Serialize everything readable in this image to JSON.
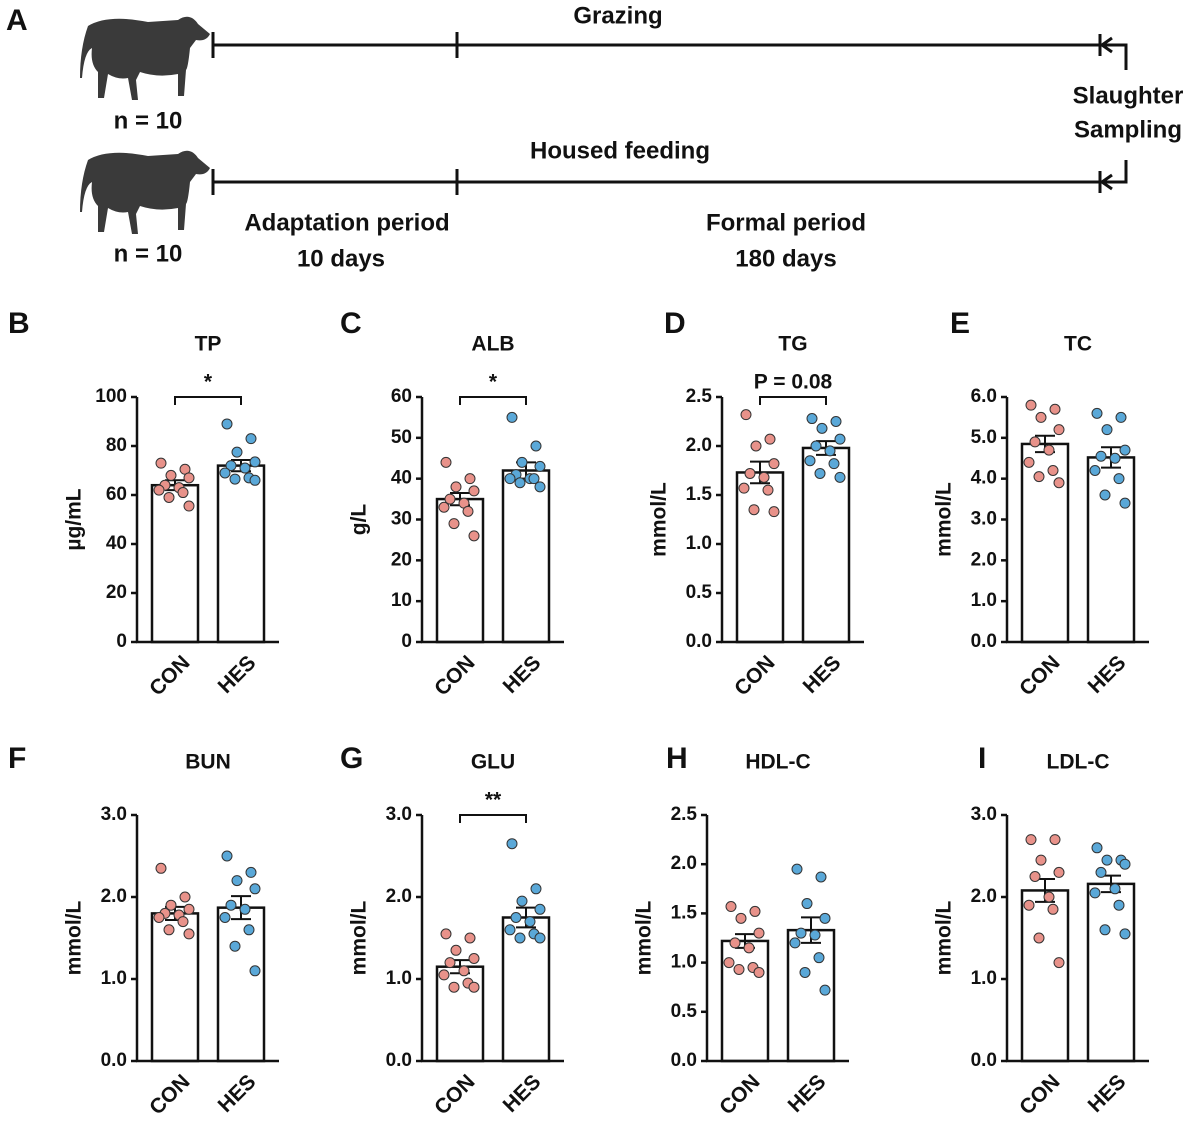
{
  "panel_a": {
    "label": "A",
    "top_group": "Grazing",
    "bottom_group": "Housed feeding",
    "top_n": "n = 10",
    "bottom_n": "n = 10",
    "end_line1": "Slaughter",
    "end_line2": "Sampling",
    "period1_name": "Adaptation period",
    "period1_length": "10 days",
    "period2_name": "Formal period",
    "period2_length": "180 days"
  },
  "chart_data": [
    {
      "type": "bar",
      "panel": "B",
      "title": "TP",
      "y_label": "µg/mL",
      "categories": [
        "CON",
        "HES"
      ],
      "values": [
        64,
        72
      ],
      "errors": [
        2,
        2.3
      ],
      "points": [
        [
          73,
          70.5,
          68,
          67,
          64,
          63,
          62,
          61,
          59,
          55.5
        ],
        [
          89,
          83,
          77.5,
          73.5,
          72,
          71,
          69,
          67,
          66.5,
          66
        ]
      ],
      "point_colors": [
        "#e8928a",
        "#5aa8d8"
      ],
      "color": "#ffffff",
      "annotation": "*",
      "ylim": [
        0,
        100
      ],
      "yticks": [
        0,
        20,
        40,
        60,
        80,
        100
      ]
    },
    {
      "type": "bar",
      "panel": "C",
      "title": "ALB",
      "y_label": "g/L",
      "categories": [
        "CON",
        "HES"
      ],
      "values": [
        35,
        42
      ],
      "errors": [
        1.5,
        2
      ],
      "points": [
        [
          44,
          40,
          38,
          37,
          35,
          34,
          33,
          32,
          29,
          26
        ],
        [
          55,
          48,
          44,
          43,
          41,
          40,
          40,
          40,
          39,
          38
        ]
      ],
      "point_colors": [
        "#e8928a",
        "#5aa8d8"
      ],
      "color": "#ffffff",
      "annotation": "*",
      "ylim": [
        0,
        60
      ],
      "yticks": [
        0,
        10,
        20,
        30,
        40,
        50,
        60
      ]
    },
    {
      "type": "bar",
      "panel": "D",
      "title": "TG",
      "y_label": "mmol/L",
      "categories": [
        "CON",
        "HES"
      ],
      "values": [
        1.73,
        1.98
      ],
      "errors": [
        0.11,
        0.07
      ],
      "points": [
        [
          2.32,
          2.07,
          2.0,
          1.82,
          1.72,
          1.68,
          1.57,
          1.55,
          1.35,
          1.33
        ],
        [
          2.28,
          2.25,
          2.18,
          2.07,
          2.0,
          1.95,
          1.85,
          1.82,
          1.72,
          1.68
        ]
      ],
      "point_colors": [
        "#e8928a",
        "#5aa8d8"
      ],
      "color": "#ffffff",
      "annotation": "P = 0.08",
      "ylim": [
        0,
        2.5
      ],
      "yticks": [
        {
          "value": 0,
          "label": "0.0"
        },
        0.5,
        {
          "value": 1,
          "label": "1.0"
        },
        1.5,
        {
          "value": 2,
          "label": "2.0"
        },
        2.5
      ]
    },
    {
      "type": "bar",
      "panel": "E",
      "title": "TC",
      "y_label": "mmol/L",
      "categories": [
        "CON",
        "HES"
      ],
      "values": [
        4.85,
        4.52
      ],
      "errors": [
        0.2,
        0.25
      ],
      "points": [
        [
          5.8,
          5.7,
          5.5,
          5.2,
          4.9,
          4.7,
          4.4,
          4.2,
          4.05,
          3.9
        ],
        [
          5.6,
          5.5,
          5.2,
          4.7,
          4.55,
          4.5,
          4.2,
          4.0,
          3.6,
          3.4
        ]
      ],
      "point_colors": [
        "#e8928a",
        "#5aa8d8"
      ],
      "color": "#ffffff",
      "ylim": [
        0,
        6
      ],
      "yticks": [
        {
          "value": 0,
          "label": "0.0"
        },
        {
          "value": 1,
          "label": "1.0"
        },
        {
          "value": 2,
          "label": "2.0"
        },
        {
          "value": 3,
          "label": "3.0"
        },
        {
          "value": 4,
          "label": "4.0"
        },
        {
          "value": 5,
          "label": "5.0"
        },
        {
          "value": 6,
          "label": "6.0"
        }
      ]
    },
    {
      "type": "bar",
      "panel": "F",
      "title": "BUN",
      "y_label": "mmol/L",
      "categories": [
        "CON",
        "HES"
      ],
      "values": [
        1.8,
        1.87
      ],
      "errors": [
        0.08,
        0.14
      ],
      "points": [
        [
          2.35,
          2.0,
          1.9,
          1.85,
          1.8,
          1.78,
          1.75,
          1.7,
          1.6,
          1.55
        ],
        [
          2.5,
          2.3,
          2.2,
          2.1,
          1.9,
          1.85,
          1.75,
          1.6,
          1.4,
          1.1
        ]
      ],
      "point_colors": [
        "#e8928a",
        "#5aa8d8"
      ],
      "color": "#ffffff",
      "ylim": [
        0,
        3
      ],
      "yticks": [
        {
          "value": 0,
          "label": "0.0"
        },
        {
          "value": 1,
          "label": "1.0"
        },
        {
          "value": 2,
          "label": "2.0"
        },
        {
          "value": 3,
          "label": "3.0"
        }
      ]
    },
    {
      "type": "bar",
      "panel": "G",
      "title": "GLU",
      "y_label": "mmol/L",
      "categories": [
        "CON",
        "HES"
      ],
      "values": [
        1.15,
        1.75
      ],
      "errors": [
        0.08,
        0.12
      ],
      "points": [
        [
          1.55,
          1.5,
          1.35,
          1.25,
          1.2,
          1.1,
          1.05,
          0.95,
          0.9,
          0.9
        ],
        [
          2.65,
          2.1,
          1.95,
          1.85,
          1.75,
          1.7,
          1.6,
          1.55,
          1.5,
          1.5
        ]
      ],
      "point_colors": [
        "#e8928a",
        "#5aa8d8"
      ],
      "color": "#ffffff",
      "annotation": "**",
      "ylim": [
        0,
        3
      ],
      "yticks": [
        {
          "value": 0,
          "label": "0.0"
        },
        {
          "value": 1,
          "label": "1.0"
        },
        {
          "value": 2,
          "label": "2.0"
        },
        {
          "value": 3,
          "label": "3.0"
        }
      ]
    },
    {
      "type": "bar",
      "panel": "H",
      "title": "HDL-C",
      "y_label": "mmol/L",
      "categories": [
        "CON",
        "HES"
      ],
      "values": [
        1.22,
        1.33
      ],
      "errors": [
        0.07,
        0.13
      ],
      "points": [
        [
          1.57,
          1.52,
          1.45,
          1.3,
          1.2,
          1.15,
          1.0,
          0.95,
          0.93,
          0.9
        ],
        [
          1.95,
          1.87,
          1.6,
          1.45,
          1.3,
          1.28,
          1.2,
          1.05,
          0.9,
          0.72
        ]
      ],
      "point_colors": [
        "#e8928a",
        "#5aa8d8"
      ],
      "color": "#ffffff",
      "ylim": [
        0,
        2.5
      ],
      "yticks": [
        {
          "value": 0,
          "label": "0.0"
        },
        0.5,
        {
          "value": 1,
          "label": "1.0"
        },
        1.5,
        {
          "value": 2,
          "label": "2.0"
        },
        2.5
      ]
    },
    {
      "type": "bar",
      "panel": "I",
      "title": "LDL-C",
      "y_label": "mmol/L",
      "categories": [
        "CON",
        "HES"
      ],
      "values": [
        2.08,
        2.16
      ],
      "errors": [
        0.14,
        0.1
      ],
      "points": [
        [
          2.7,
          2.7,
          2.45,
          2.3,
          2.25,
          2.0,
          1.9,
          1.85,
          1.5,
          1.2
        ],
        [
          2.6,
          2.45,
          2.45,
          2.4,
          2.3,
          2.1,
          2.05,
          1.9,
          1.6,
          1.55
        ]
      ],
      "point_colors": [
        "#e8928a",
        "#5aa8d8"
      ],
      "color": "#ffffff",
      "ylim": [
        0,
        3
      ],
      "yticks": [
        {
          "value": 0,
          "label": "0.0"
        },
        {
          "value": 1,
          "label": "1.0"
        },
        {
          "value": 2,
          "label": "2.0"
        },
        {
          "value": 3,
          "label": "3.0"
        }
      ]
    }
  ]
}
